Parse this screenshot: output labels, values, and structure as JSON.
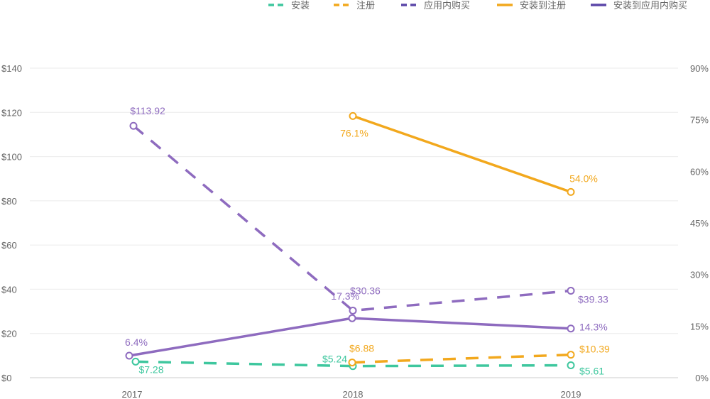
{
  "chart_data": {
    "type": "line",
    "categories": [
      "2017",
      "2018",
      "2019"
    ],
    "left_axis": {
      "ylim": [
        0,
        140
      ],
      "ticks": [
        "$0",
        "$20",
        "$40",
        "$60",
        "$80",
        "$100",
        "$120",
        "$140"
      ]
    },
    "right_axis": {
      "ylim": [
        0,
        90
      ],
      "ticks": [
        "0%",
        "15%",
        "30%",
        "45%",
        "60%",
        "75%",
        "90%"
      ]
    },
    "grid": true,
    "legend_position": "top-right",
    "series": [
      {
        "name": "安装",
        "axis": "left",
        "style": "dashed",
        "color": "#3ec79e",
        "legend_color": "#3ec79e",
        "values": [
          7.28,
          5.24,
          5.61
        ],
        "labels": [
          "$7.28",
          "$5.24",
          "$5.61"
        ]
      },
      {
        "name": "注册",
        "axis": "left",
        "style": "dashed",
        "color": "#f2a81d",
        "legend_color": "#f2a81d",
        "values": [
          null,
          6.88,
          10.39
        ],
        "labels": [
          null,
          "$6.88",
          "$10.39"
        ]
      },
      {
        "name": "应用内购买",
        "axis": "left",
        "style": "dashed",
        "color": "#8e6bbf",
        "legend_color": "#5b47a8",
        "values": [
          113.92,
          30.36,
          39.33
        ],
        "labels": [
          "$113.92",
          "$30.36",
          "$39.33"
        ]
      },
      {
        "name": "安装到注册",
        "axis": "right",
        "style": "solid",
        "color": "#f2a81d",
        "legend_color": "#f2a81d",
        "values": [
          null,
          76.1,
          54.0
        ],
        "labels": [
          null,
          "76.1%",
          "54.0%"
        ]
      },
      {
        "name": "安装到应用内购买",
        "axis": "right",
        "style": "solid",
        "color": "#8e6bbf",
        "legend_color": "#5b47a8",
        "values": [
          6.4,
          17.3,
          14.3
        ],
        "labels": [
          "6.4%",
          "17.3%",
          "14.3%"
        ]
      }
    ]
  }
}
